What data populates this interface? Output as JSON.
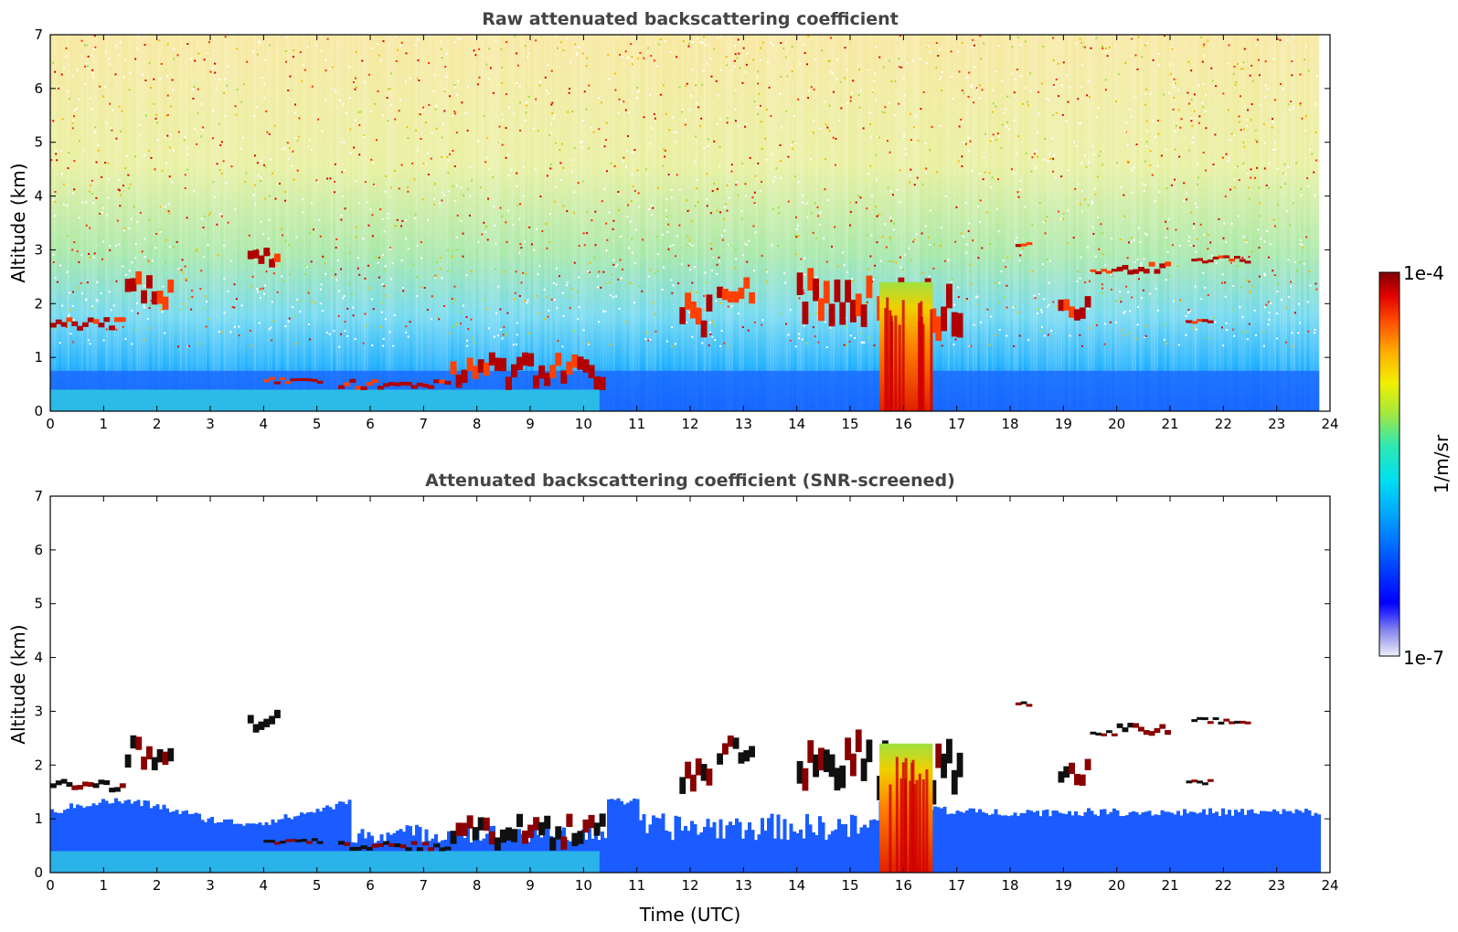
{
  "chart_data": [
    {
      "type": "heatmap",
      "title": "Raw attenuated backscattering coefficient",
      "xlabel": "",
      "ylabel": "Altitude (km)",
      "xlim": [
        0,
        24
      ],
      "ylim": [
        0,
        7
      ],
      "xticks": [
        "0",
        "1",
        "2",
        "3",
        "4",
        "5",
        "6",
        "7",
        "8",
        "9",
        "10",
        "11",
        "12",
        "13",
        "14",
        "15",
        "16",
        "17",
        "18",
        "19",
        "20",
        "21",
        "22",
        "23",
        "24"
      ],
      "yticks": [
        "0",
        "1",
        "2",
        "3",
        "4",
        "5",
        "6",
        "7"
      ],
      "data_end_time": 23.8,
      "layers": [
        {
          "t": [
            0.0,
            1.4
          ],
          "alt": [
            1.5,
            1.75
          ]
        },
        {
          "t": [
            1.4,
            2.3
          ],
          "alt": [
            1.9,
            2.6
          ]
        },
        {
          "t": [
            3.7,
            4.3
          ],
          "alt": [
            2.6,
            3.05
          ]
        },
        {
          "t": [
            4.0,
            5.1
          ],
          "alt": [
            0.5,
            0.65
          ]
        },
        {
          "t": [
            5.4,
            7.5
          ],
          "alt": [
            0.4,
            0.6
          ]
        },
        {
          "t": [
            7.5,
            10.4
          ],
          "alt": [
            0.4,
            1.1
          ]
        },
        {
          "t": [
            11.8,
            12.4
          ],
          "alt": [
            1.4,
            2.3
          ]
        },
        {
          "t": [
            12.5,
            13.2
          ],
          "alt": [
            2.0,
            2.6
          ]
        },
        {
          "t": [
            14.0,
            15.4
          ],
          "alt": [
            1.5,
            2.7
          ]
        },
        {
          "t": [
            15.5,
            17.1
          ],
          "alt": [
            1.2,
            2.5
          ]
        },
        {
          "t": [
            18.1,
            18.4
          ],
          "alt": [
            3.05,
            3.2
          ]
        },
        {
          "t": [
            18.9,
            19.5
          ],
          "alt": [
            1.6,
            2.2
          ]
        },
        {
          "t": [
            19.5,
            20.0
          ],
          "alt": [
            2.5,
            2.65
          ]
        },
        {
          "t": [
            20.0,
            21.0
          ],
          "alt": [
            2.55,
            2.8
          ]
        },
        {
          "t": [
            21.4,
            22.5
          ],
          "alt": [
            2.75,
            2.9
          ]
        },
        {
          "t": [
            21.3,
            21.8
          ],
          "alt": [
            1.6,
            1.75
          ]
        }
      ],
      "convective_core": {
        "t": [
          15.55,
          16.55
        ],
        "alt": [
          0,
          2.4
        ]
      }
    },
    {
      "type": "heatmap",
      "title": "Attenuated backscattering coefficient (SNR-screened)",
      "xlabel": "Time (UTC)",
      "ylabel": "Altitude (km)",
      "xlim": [
        0,
        24
      ],
      "ylim": [
        0,
        7
      ],
      "xticks": [
        "0",
        "1",
        "2",
        "3",
        "4",
        "5",
        "6",
        "7",
        "8",
        "9",
        "10",
        "11",
        "12",
        "13",
        "14",
        "15",
        "16",
        "17",
        "18",
        "19",
        "20",
        "21",
        "22",
        "23",
        "24"
      ],
      "yticks": [
        "0",
        "1",
        "2",
        "3",
        "4",
        "5",
        "6",
        "7"
      ],
      "data_end_time": 23.8
    }
  ],
  "colorbar": {
    "label": "1/m/sr",
    "max_label": "1e-4",
    "min_label": "1e-7",
    "colormap": "jet",
    "colors": [
      "#e8e8f8",
      "#b0b0f0",
      "#7070f0",
      "#0000ff",
      "#0060ff",
      "#00b0ff",
      "#00e0e0",
      "#40e0a0",
      "#a0e040",
      "#f0f000",
      "#ffb000",
      "#ff5000",
      "#e00000",
      "#800000"
    ]
  }
}
